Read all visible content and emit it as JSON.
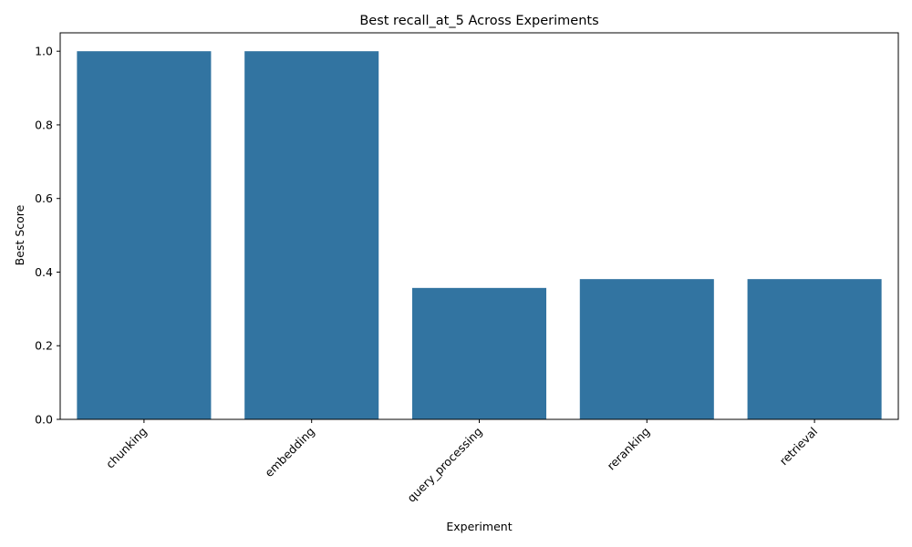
{
  "chart_data": {
    "type": "bar",
    "title": "Best recall_at_5 Across Experiments",
    "xlabel": "Experiment",
    "ylabel": "Best Score",
    "categories": [
      "chunking",
      "embedding",
      "query_processing",
      "reranking",
      "retrieval"
    ],
    "values": [
      1.0,
      1.0,
      0.357,
      0.381,
      0.381
    ],
    "ylim": [
      0,
      1.05
    ],
    "yticks": [
      0.0,
      0.2,
      0.4,
      0.6,
      0.8,
      1.0
    ],
    "ytick_labels": [
      "0.0",
      "0.2",
      "0.4",
      "0.6",
      "0.8",
      "1.0"
    ],
    "bar_color": "#3274a1",
    "grid": false,
    "xtick_rotation_deg": 45
  }
}
